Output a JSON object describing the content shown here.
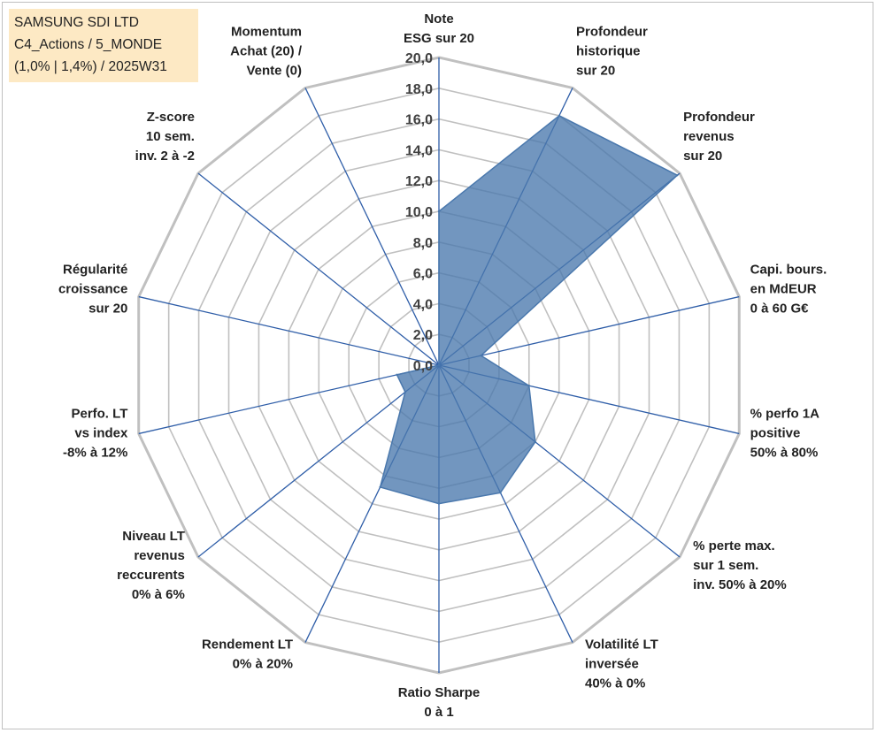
{
  "info_box": {
    "line1": "SAMSUNG SDI LTD",
    "line2": "C4_Actions / 5_MONDE",
    "line3": "(1,0% | 1,4%) / 2025W31"
  },
  "colors": {
    "grid": "#c0c0c0",
    "spoke": "#2f5ea8",
    "fill": "#4a78ad",
    "info_bg": "#fde9c4"
  },
  "chart_data": {
    "type": "radar",
    "rmin": 0,
    "rmax": 20,
    "tick_step": 2,
    "tick_labels": [
      "0,0",
      "2,0",
      "4,0",
      "6,0",
      "8,0",
      "10,0",
      "12,0",
      "14,0",
      "16,0",
      "18,0",
      "20,0"
    ],
    "axes": [
      {
        "label": [
          "Note",
          "ESG sur 20"
        ],
        "value": 10.0
      },
      {
        "label": [
          "Profondeur",
          "historique",
          "sur 20"
        ],
        "value": 18.0
      },
      {
        "label": [
          "Profondeur",
          "revenus",
          "sur 20"
        ],
        "value": 19.8
      },
      {
        "label": [
          "Capi. bours.",
          "en MdEUR",
          "0 à 60 G€"
        ],
        "value": 2.8
      },
      {
        "label": [
          "% perfo 1A",
          "positive",
          "50% à 80%"
        ],
        "value": 6.0
      },
      {
        "label": [
          "% perte max.",
          "sur 1 sem.",
          "inv. 50% à 20%"
        ],
        "value": 8.0
      },
      {
        "label": [
          "Volatilité LT",
          "inversée",
          "40% à 0%"
        ],
        "value": 9.2
      },
      {
        "label": [
          "Ratio Sharpe",
          "0 à 1"
        ],
        "value": 9.0
      },
      {
        "label": [
          "Rendement LT",
          "0% à 20%"
        ],
        "value": 8.8
      },
      {
        "label": [
          "Niveau LT",
          "revenus",
          "reccurents",
          "0% à 6%"
        ],
        "value": 2.8
      },
      {
        "label": [
          "Perfo. LT",
          "vs index",
          "-8% à 12%"
        ],
        "value": 2.8
      },
      {
        "label": [
          "Régularité",
          "croissance",
          "sur 20"
        ],
        "value": 0.0
      },
      {
        "label": [
          "Z-score",
          "10 sem.",
          "inv. 2 à -2"
        ],
        "value": 0.0
      },
      {
        "label": [
          "Momentum",
          "Achat (20) /",
          "Vente (0)"
        ],
        "value": 0.0
      }
    ]
  }
}
